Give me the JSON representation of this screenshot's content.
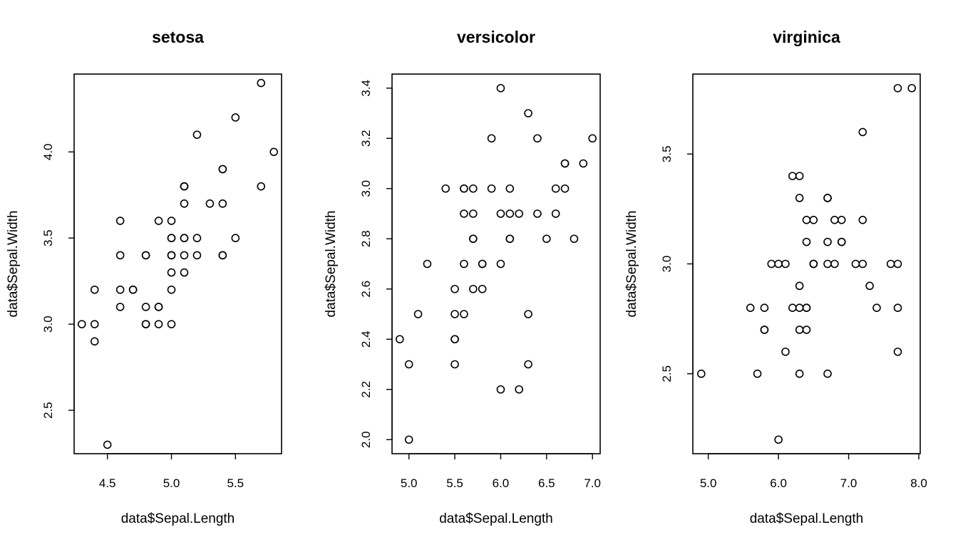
{
  "chart_data": [
    {
      "type": "scatter",
      "title": "setosa",
      "xlabel": "data$Sepal.Length",
      "ylabel": "data$Sepal.Width",
      "xlim": [
        4.24,
        5.86
      ],
      "ylim": [
        2.248,
        4.452
      ],
      "xticks": [
        4.5,
        5.0,
        5.5
      ],
      "xtick_labels": [
        "4.5",
        "5.0",
        "5.5"
      ],
      "yticks": [
        2.5,
        3.0,
        3.5,
        4.0
      ],
      "ytick_labels": [
        "2.5",
        "3.0",
        "3.5",
        "4.0"
      ],
      "points": [
        [
          5.1,
          3.5
        ],
        [
          4.9,
          3.0
        ],
        [
          4.7,
          3.2
        ],
        [
          4.6,
          3.1
        ],
        [
          5.0,
          3.6
        ],
        [
          5.4,
          3.9
        ],
        [
          4.6,
          3.4
        ],
        [
          5.0,
          3.4
        ],
        [
          4.4,
          2.9
        ],
        [
          4.9,
          3.1
        ],
        [
          5.4,
          3.7
        ],
        [
          4.8,
          3.4
        ],
        [
          4.8,
          3.0
        ],
        [
          4.3,
          3.0
        ],
        [
          5.8,
          4.0
        ],
        [
          5.7,
          4.4
        ],
        [
          5.4,
          3.9
        ],
        [
          5.1,
          3.5
        ],
        [
          5.7,
          3.8
        ],
        [
          5.1,
          3.8
        ],
        [
          5.4,
          3.4
        ],
        [
          5.1,
          3.7
        ],
        [
          4.6,
          3.6
        ],
        [
          5.1,
          3.3
        ],
        [
          4.8,
          3.4
        ],
        [
          5.0,
          3.0
        ],
        [
          5.0,
          3.4
        ],
        [
          5.2,
          3.5
        ],
        [
          5.2,
          3.4
        ],
        [
          4.7,
          3.2
        ],
        [
          4.8,
          3.1
        ],
        [
          5.4,
          3.4
        ],
        [
          5.2,
          4.1
        ],
        [
          5.5,
          4.2
        ],
        [
          4.9,
          3.1
        ],
        [
          5.0,
          3.2
        ],
        [
          5.5,
          3.5
        ],
        [
          4.9,
          3.6
        ],
        [
          4.4,
          3.0
        ],
        [
          5.1,
          3.4
        ],
        [
          5.0,
          3.5
        ],
        [
          4.5,
          2.3
        ],
        [
          4.4,
          3.2
        ],
        [
          5.0,
          3.5
        ],
        [
          5.1,
          3.8
        ],
        [
          4.8,
          3.0
        ],
        [
          5.1,
          3.8
        ],
        [
          4.6,
          3.2
        ],
        [
          5.3,
          3.7
        ],
        [
          5.0,
          3.3
        ]
      ]
    },
    {
      "type": "scatter",
      "title": "versicolor",
      "xlabel": "data$Sepal.Length",
      "ylabel": "data$Sepal.Width",
      "xlim": [
        4.816,
        7.084
      ],
      "ylim": [
        1.944,
        3.456
      ],
      "xticks": [
        5.0,
        5.5,
        6.0,
        6.5,
        7.0
      ],
      "xtick_labels": [
        "5.0",
        "5.5",
        "6.0",
        "6.5",
        "7.0"
      ],
      "yticks": [
        2.0,
        2.2,
        2.4,
        2.6,
        2.8,
        3.0,
        3.2,
        3.4
      ],
      "ytick_labels": [
        "2.0",
        "2.2",
        "2.4",
        "2.6",
        "2.8",
        "3.0",
        "3.2",
        "3.4"
      ],
      "points": [
        [
          7.0,
          3.2
        ],
        [
          6.4,
          3.2
        ],
        [
          6.9,
          3.1
        ],
        [
          5.5,
          2.3
        ],
        [
          6.5,
          2.8
        ],
        [
          5.7,
          2.8
        ],
        [
          6.3,
          3.3
        ],
        [
          4.9,
          2.4
        ],
        [
          6.6,
          2.9
        ],
        [
          5.2,
          2.7
        ],
        [
          5.0,
          2.0
        ],
        [
          5.9,
          3.0
        ],
        [
          6.0,
          2.2
        ],
        [
          6.1,
          2.9
        ],
        [
          5.6,
          2.9
        ],
        [
          6.7,
          3.1
        ],
        [
          5.6,
          3.0
        ],
        [
          5.8,
          2.7
        ],
        [
          6.2,
          2.2
        ],
        [
          5.6,
          2.5
        ],
        [
          5.9,
          3.2
        ],
        [
          6.1,
          2.8
        ],
        [
          6.3,
          2.5
        ],
        [
          6.1,
          2.8
        ],
        [
          6.4,
          2.9
        ],
        [
          6.6,
          3.0
        ],
        [
          6.8,
          2.8
        ],
        [
          6.7,
          3.0
        ],
        [
          6.0,
          2.9
        ],
        [
          5.7,
          2.6
        ],
        [
          5.5,
          2.4
        ],
        [
          5.5,
          2.4
        ],
        [
          5.8,
          2.7
        ],
        [
          6.0,
          2.7
        ],
        [
          5.4,
          3.0
        ],
        [
          6.0,
          3.4
        ],
        [
          6.7,
          3.1
        ],
        [
          6.3,
          2.3
        ],
        [
          5.6,
          3.0
        ],
        [
          5.5,
          2.5
        ],
        [
          5.5,
          2.6
        ],
        [
          6.1,
          3.0
        ],
        [
          5.8,
          2.6
        ],
        [
          5.0,
          2.3
        ],
        [
          5.6,
          2.7
        ],
        [
          5.7,
          3.0
        ],
        [
          5.7,
          2.9
        ],
        [
          6.2,
          2.9
        ],
        [
          5.1,
          2.5
        ],
        [
          5.7,
          2.8
        ]
      ]
    },
    {
      "type": "scatter",
      "title": "virginica",
      "xlabel": "data$Sepal.Length",
      "ylabel": "data$Sepal.Width",
      "xlim": [
        4.78,
        8.02
      ],
      "ylim": [
        2.136,
        3.864
      ],
      "xticks": [
        5.0,
        6.0,
        7.0,
        8.0
      ],
      "xtick_labels": [
        "5.0",
        "6.0",
        "7.0",
        "8.0"
      ],
      "yticks": [
        2.5,
        3.0,
        3.5
      ],
      "ytick_labels": [
        "2.5",
        "3.0",
        "3.5"
      ],
      "points": [
        [
          6.3,
          3.3
        ],
        [
          5.8,
          2.7
        ],
        [
          7.1,
          3.0
        ],
        [
          6.3,
          2.9
        ],
        [
          6.5,
          3.0
        ],
        [
          7.6,
          3.0
        ],
        [
          4.9,
          2.5
        ],
        [
          7.3,
          2.9
        ],
        [
          6.7,
          2.5
        ],
        [
          7.2,
          3.6
        ],
        [
          6.5,
          3.2
        ],
        [
          6.4,
          2.7
        ],
        [
          6.8,
          3.0
        ],
        [
          5.7,
          2.5
        ],
        [
          5.8,
          2.8
        ],
        [
          6.4,
          3.2
        ],
        [
          6.5,
          3.0
        ],
        [
          7.7,
          3.8
        ],
        [
          7.7,
          2.6
        ],
        [
          6.0,
          2.2
        ],
        [
          6.9,
          3.2
        ],
        [
          5.6,
          2.8
        ],
        [
          7.7,
          2.8
        ],
        [
          6.3,
          2.7
        ],
        [
          6.7,
          3.3
        ],
        [
          7.2,
          3.2
        ],
        [
          6.2,
          2.8
        ],
        [
          6.1,
          3.0
        ],
        [
          6.4,
          2.8
        ],
        [
          7.2,
          3.0
        ],
        [
          7.4,
          2.8
        ],
        [
          7.9,
          3.8
        ],
        [
          6.4,
          2.8
        ],
        [
          6.3,
          2.8
        ],
        [
          6.1,
          2.6
        ],
        [
          7.7,
          3.0
        ],
        [
          6.3,
          3.4
        ],
        [
          6.4,
          3.1
        ],
        [
          6.0,
          3.0
        ],
        [
          6.9,
          3.1
        ],
        [
          6.7,
          3.1
        ],
        [
          6.9,
          3.1
        ],
        [
          5.8,
          2.7
        ],
        [
          6.8,
          3.2
        ],
        [
          6.7,
          3.3
        ],
        [
          6.7,
          3.0
        ],
        [
          6.3,
          2.5
        ],
        [
          6.5,
          3.0
        ],
        [
          6.2,
          3.4
        ],
        [
          5.9,
          3.0
        ]
      ]
    }
  ]
}
